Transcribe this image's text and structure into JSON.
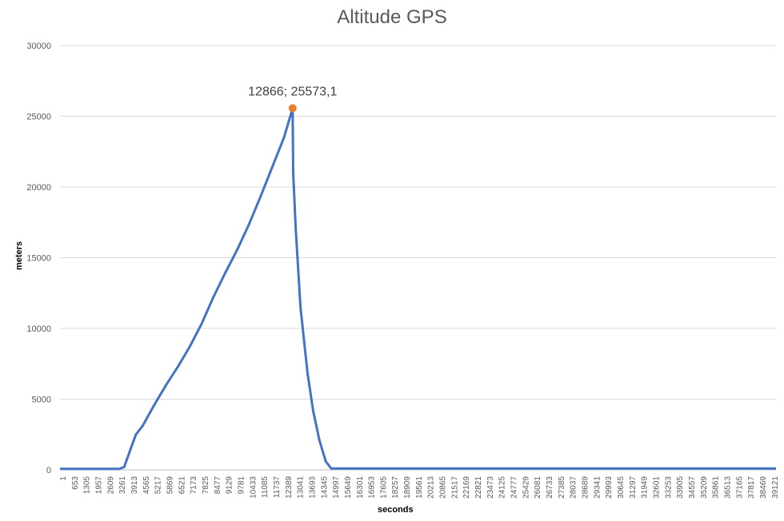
{
  "chart_data": {
    "type": "line",
    "title": "Altitude GPS",
    "xlabel": "seconds",
    "ylabel": "meters",
    "ylim": [
      0,
      30000
    ],
    "y_ticks": [
      0,
      5000,
      10000,
      15000,
      20000,
      25000,
      30000
    ],
    "x_range": [
      1,
      39600
    ],
    "x_tick_labels": [
      "1",
      "653",
      "1305",
      "1957",
      "2609",
      "3261",
      "3913",
      "4565",
      "5217",
      "5869",
      "6521",
      "7173",
      "7825",
      "8477",
      "9129",
      "9781",
      "10433",
      "11085",
      "11737",
      "12389",
      "13041",
      "13693",
      "14345",
      "14997",
      "15649",
      "16301",
      "16953",
      "17605",
      "18257",
      "18909",
      "19561",
      "20213",
      "20865",
      "21517",
      "22169",
      "22821",
      "23473",
      "24125",
      "24777",
      "25429",
      "26081",
      "26733",
      "27385",
      "28037",
      "28689",
      "29341",
      "29993",
      "30645",
      "31297",
      "31949",
      "32601",
      "33253",
      "33905",
      "34557",
      "35209",
      "35861",
      "36513",
      "37165",
      "37817",
      "38469",
      "39121"
    ],
    "series": [
      {
        "name": "Altitude GPS",
        "color": "#4472c4",
        "x": [
          1,
          3261,
          3550,
          3913,
          4200,
          4565,
          5217,
          5869,
          6521,
          7173,
          7825,
          8477,
          9129,
          9781,
          10433,
          11085,
          11737,
          12389,
          12866,
          12900,
          13041,
          13300,
          13693,
          14000,
          14345,
          14700,
          14997,
          15649,
          39600
        ],
        "y": [
          70,
          70,
          200,
          1500,
          2500,
          3100,
          4600,
          6000,
          7300,
          8700,
          10300,
          12200,
          13900,
          15500,
          17300,
          19300,
          21400,
          23500,
          25573.1,
          21000,
          17000,
          11500,
          6800,
          4200,
          2100,
          600,
          100,
          100,
          100
        ]
      }
    ],
    "annotations": [
      {
        "x": 12866,
        "y": 25573.1,
        "label": "12866; 25573,1",
        "marker_color": "#ed7d31"
      }
    ]
  }
}
